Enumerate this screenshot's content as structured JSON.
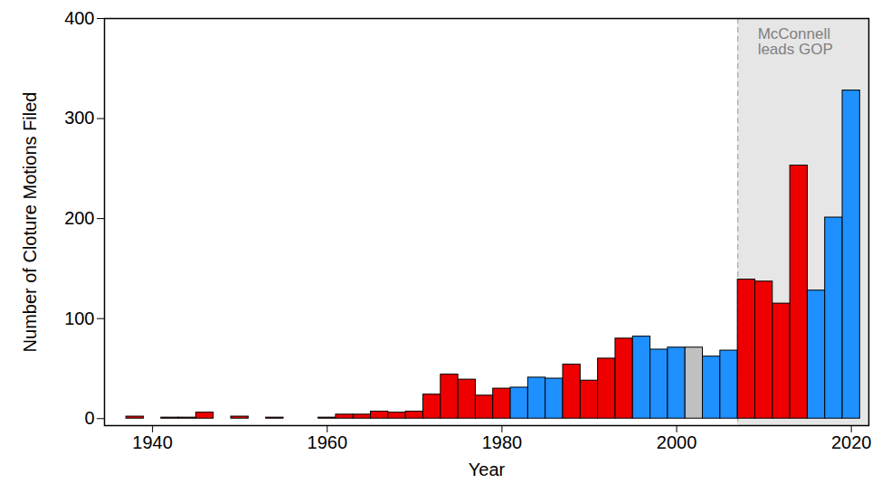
{
  "chart_data": {
    "type": "histogram",
    "x_label": "Year",
    "y_label": "Number of Cloture Motions Filed",
    "bins": [
      1937,
      1939,
      1941,
      1943,
      1945,
      1947,
      1949,
      1951,
      1953,
      1955,
      1957,
      1959,
      1961,
      1963,
      1965,
      1967,
      1969,
      1971,
      1973,
      1975,
      1977,
      1979,
      1981,
      1983,
      1985,
      1987,
      1989,
      1991,
      1993,
      1995,
      1997,
      1999,
      2001,
      2003,
      2005,
      2007,
      2009,
      2011,
      2013,
      2015,
      2017,
      2019,
      2021
    ],
    "values": [
      2,
      0,
      1,
      1,
      6,
      0,
      2,
      0,
      1,
      0,
      0,
      1,
      4,
      4,
      7,
      6,
      7,
      24,
      44,
      39,
      23,
      30,
      31,
      41,
      40,
      54,
      38,
      60,
      80,
      82,
      69,
      71,
      71,
      62,
      68,
      139,
      137,
      115,
      253,
      128,
      201,
      328
    ],
    "colors": [
      "#ee0000",
      "#ee0000",
      "#ee0000",
      "#ee0000",
      "#ee0000",
      "#ee0000",
      "#ee0000",
      "#ee0000",
      "#ee0000",
      "#ee0000",
      "#ee0000",
      "#ee0000",
      "#ee0000",
      "#ee0000",
      "#ee0000",
      "#ee0000",
      "#ee0000",
      "#ee0000",
      "#ee0000",
      "#ee0000",
      "#ee0000",
      "#ee0000",
      "#1e90ff",
      "#1e90ff",
      "#1e90ff",
      "#ee0000",
      "#ee0000",
      "#ee0000",
      "#ee0000",
      "#1e90ff",
      "#1e90ff",
      "#1e90ff",
      "#c0c0c0",
      "#1e90ff",
      "#1e90ff",
      "#ee0000",
      "#ee0000",
      "#ee0000",
      "#ee0000",
      "#1e90ff",
      "#1e90ff",
      "#1e90ff"
    ],
    "xlim": [
      1934.5,
      2022
    ],
    "ylim": [
      -7,
      400
    ],
    "xticks": [
      1940,
      1960,
      1980,
      2000,
      2020
    ],
    "yticks": [
      0,
      100,
      200,
      300,
      400
    ],
    "shaded_region": {
      "from": 2007,
      "to": 2022,
      "label": "McConnell\nleads GOP"
    }
  }
}
